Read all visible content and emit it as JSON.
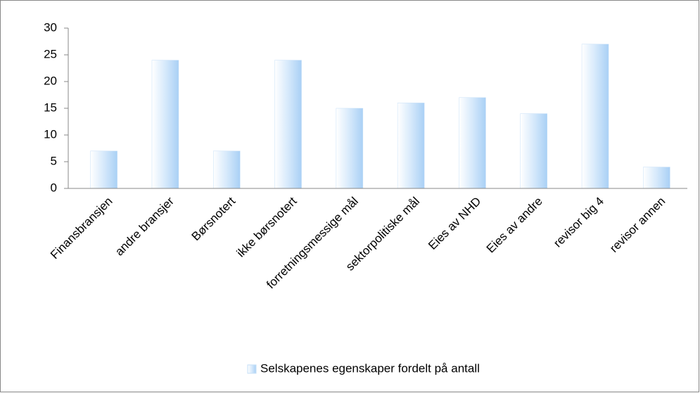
{
  "chart_data": {
    "type": "bar",
    "categories": [
      "Finansbransjen",
      "andre bransjer",
      "Børsnotert",
      "ikke børsnotert",
      "forretningsmessige mål",
      "sektorpolitiske mål",
      "Eies av NHD",
      "Eies av andre",
      "revisor big 4",
      "revisor annen"
    ],
    "series": [
      {
        "name": "Selskapenes egenskaper fordelt på antall",
        "color": "#b8d8f8",
        "values": [
          7,
          24,
          7,
          24,
          15,
          16,
          17,
          14,
          27,
          4
        ]
      }
    ],
    "ylim": [
      0,
      30
    ],
    "yticks": [
      0,
      5,
      10,
      15,
      20,
      25,
      30
    ],
    "grid": false,
    "legend": "bottom"
  }
}
